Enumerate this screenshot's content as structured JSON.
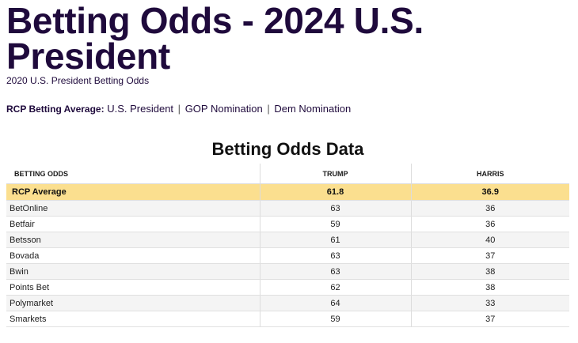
{
  "page": {
    "title": "Betting Odds - 2024 U.S. President",
    "subtitle": "2020 U.S. President Betting Odds"
  },
  "rcp_nav": {
    "label": "RCP Betting Average:",
    "links": [
      "U.S. President",
      "GOP Nomination",
      "Dem Nomination"
    ],
    "separator": "|"
  },
  "table": {
    "title": "Betting Odds Data",
    "headers": [
      "Betting Odds",
      "Trump",
      "Harris"
    ],
    "average": {
      "name": "RCP Average",
      "trump": "61.8",
      "harris": "36.9"
    },
    "rows": [
      {
        "name": "BetOnline",
        "trump": "63",
        "harris": "36"
      },
      {
        "name": "Betfair",
        "trump": "59",
        "harris": "36"
      },
      {
        "name": "Betsson",
        "trump": "61",
        "harris": "40"
      },
      {
        "name": "Bovada",
        "trump": "63",
        "harris": "37"
      },
      {
        "name": "Bwin",
        "trump": "63",
        "harris": "38"
      },
      {
        "name": "Points Bet",
        "trump": "62",
        "harris": "38"
      },
      {
        "name": "Polymarket",
        "trump": "64",
        "harris": "33"
      },
      {
        "name": "Smarkets",
        "trump": "59",
        "harris": "37"
      }
    ]
  },
  "colors": {
    "title": "#1f0a3c",
    "average_row": "#fbdf8f",
    "alt_row": "#f4f4f4"
  }
}
